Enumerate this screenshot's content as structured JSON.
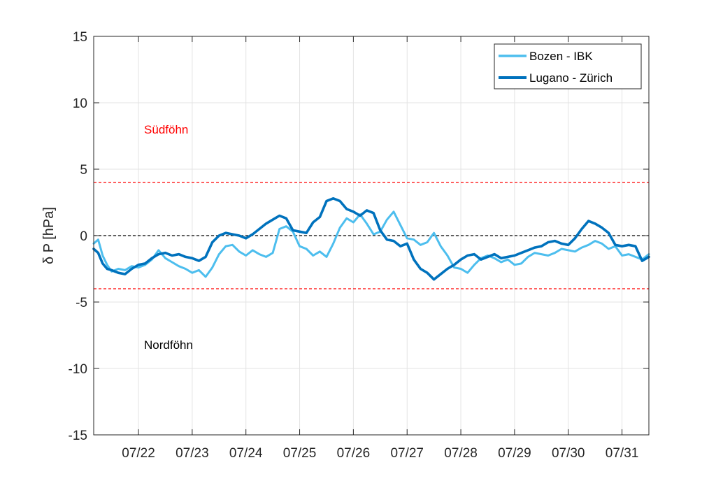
{
  "chart_data": {
    "type": "line",
    "title": "",
    "xlabel": "",
    "ylabel": "δ P [hPa]",
    "xlim": [
      "07/21 04:00",
      "07/31 12:00"
    ],
    "ylim": [
      -15,
      15
    ],
    "grid": true,
    "legend_position": "top-right",
    "x_ticks": [
      "07/22",
      "07/23",
      "07/24",
      "07/25",
      "07/26",
      "07/27",
      "07/28",
      "07/29",
      "07/30",
      "07/31"
    ],
    "y_ticks": [
      -15,
      -10,
      -5,
      0,
      5,
      10,
      15
    ],
    "y_tick_labels": [
      "-15",
      "-10",
      "-5",
      "0",
      "5",
      "10",
      "15"
    ],
    "reference_lines": [
      {
        "y": 4,
        "color": "#ff0000",
        "style": "dashed"
      },
      {
        "y": 0,
        "color": "#000000",
        "style": "dashed"
      },
      {
        "y": -4,
        "color": "#ff0000",
        "style": "dashed"
      }
    ],
    "annotations": [
      {
        "text": "Südföhn",
        "x": "07/22 00:00",
        "y": 8,
        "color": "#ff0000"
      },
      {
        "text": "Nordföhn",
        "x": "07/22 00:00",
        "y": -8.2,
        "color": "#000000"
      }
    ],
    "series": [
      {
        "name": "Bozen - IBK",
        "color": "#4dbeee",
        "line_width": "thin",
        "x": [
          "07/21 04:00",
          "07/21 06:00",
          "07/21 08:00",
          "07/21 10:00",
          "07/21 12:00",
          "07/21 15:00",
          "07/21 18:00",
          "07/21 21:00",
          "07/22 00:00",
          "07/22 03:00",
          "07/22 06:00",
          "07/22 09:00",
          "07/22 12:00",
          "07/22 15:00",
          "07/22 18:00",
          "07/22 21:00",
          "07/23 00:00",
          "07/23 03:00",
          "07/23 06:00",
          "07/23 09:00",
          "07/23 12:00",
          "07/23 15:00",
          "07/23 18:00",
          "07/23 21:00",
          "07/24 00:00",
          "07/24 03:00",
          "07/24 06:00",
          "07/24 09:00",
          "07/24 12:00",
          "07/24 15:00",
          "07/24 18:00",
          "07/24 21:00",
          "07/25 00:00",
          "07/25 03:00",
          "07/25 06:00",
          "07/25 09:00",
          "07/25 12:00",
          "07/25 15:00",
          "07/25 18:00",
          "07/25 21:00",
          "07/26 00:00",
          "07/26 03:00",
          "07/26 06:00",
          "07/26 09:00",
          "07/26 12:00",
          "07/26 15:00",
          "07/26 18:00",
          "07/26 21:00",
          "07/27 00:00",
          "07/27 03:00",
          "07/27 06:00",
          "07/27 09:00",
          "07/27 12:00",
          "07/27 15:00",
          "07/27 18:00",
          "07/27 21:00",
          "07/28 00:00",
          "07/28 03:00",
          "07/28 06:00",
          "07/28 09:00",
          "07/28 12:00",
          "07/28 15:00",
          "07/28 18:00",
          "07/28 21:00",
          "07/29 00:00",
          "07/29 03:00",
          "07/29 06:00",
          "07/29 09:00",
          "07/29 12:00",
          "07/29 15:00",
          "07/29 18:00",
          "07/29 21:00",
          "07/30 00:00",
          "07/30 03:00",
          "07/30 06:00",
          "07/30 09:00",
          "07/30 12:00",
          "07/30 15:00",
          "07/30 18:00",
          "07/30 21:00",
          "07/31 00:00",
          "07/31 03:00",
          "07/31 06:00",
          "07/31 09:00",
          "07/31 12:00"
        ],
        "y": [
          -0.6,
          -0.3,
          -1.5,
          -2.2,
          -2.7,
          -2.5,
          -2.6,
          -2.3,
          -2.4,
          -2.2,
          -1.8,
          -1.1,
          -1.7,
          -2.0,
          -2.3,
          -2.5,
          -2.8,
          -2.6,
          -3.1,
          -2.4,
          -1.4,
          -0.8,
          -0.7,
          -1.2,
          -1.5,
          -1.1,
          -1.4,
          -1.6,
          -1.3,
          0.5,
          0.7,
          0.3,
          -0.8,
          -1.0,
          -1.5,
          -1.2,
          -1.6,
          -0.6,
          0.6,
          1.3,
          1.0,
          1.6,
          0.9,
          0.1,
          0.3,
          1.2,
          1.8,
          0.8,
          -0.2,
          -0.3,
          -0.7,
          -0.5,
          0.2,
          -0.8,
          -1.5,
          -2.4,
          -2.5,
          -2.8,
          -2.2,
          -1.7,
          -1.5,
          -1.7,
          -2.0,
          -1.8,
          -2.2,
          -2.1,
          -1.6,
          -1.3,
          -1.4,
          -1.5,
          -1.3,
          -1.0,
          -1.1,
          -1.2,
          -0.9,
          -0.7,
          -0.4,
          -0.6,
          -1.0,
          -0.8,
          -1.5,
          -1.4,
          -1.6,
          -1.8,
          -1.4
        ]
      },
      {
        "name": "Lugano - Zürich",
        "color": "#0072bd",
        "line_width": "thick",
        "x": [
          "07/21 04:00",
          "07/21 06:00",
          "07/21 08:00",
          "07/21 10:00",
          "07/21 12:00",
          "07/21 15:00",
          "07/21 18:00",
          "07/21 21:00",
          "07/22 00:00",
          "07/22 03:00",
          "07/22 06:00",
          "07/22 09:00",
          "07/22 12:00",
          "07/22 15:00",
          "07/22 18:00",
          "07/22 21:00",
          "07/23 00:00",
          "07/23 03:00",
          "07/23 06:00",
          "07/23 09:00",
          "07/23 12:00",
          "07/23 15:00",
          "07/23 18:00",
          "07/23 21:00",
          "07/24 00:00",
          "07/24 03:00",
          "07/24 06:00",
          "07/24 09:00",
          "07/24 12:00",
          "07/24 15:00",
          "07/24 18:00",
          "07/24 21:00",
          "07/25 00:00",
          "07/25 03:00",
          "07/25 06:00",
          "07/25 09:00",
          "07/25 12:00",
          "07/25 15:00",
          "07/25 18:00",
          "07/25 21:00",
          "07/26 00:00",
          "07/26 03:00",
          "07/26 06:00",
          "07/26 09:00",
          "07/26 12:00",
          "07/26 15:00",
          "07/26 18:00",
          "07/26 21:00",
          "07/27 00:00",
          "07/27 03:00",
          "07/27 06:00",
          "07/27 09:00",
          "07/27 12:00",
          "07/27 15:00",
          "07/27 18:00",
          "07/27 21:00",
          "07/28 00:00",
          "07/28 03:00",
          "07/28 06:00",
          "07/28 09:00",
          "07/28 12:00",
          "07/28 15:00",
          "07/28 18:00",
          "07/28 21:00",
          "07/29 00:00",
          "07/29 03:00",
          "07/29 06:00",
          "07/29 09:00",
          "07/29 12:00",
          "07/29 15:00",
          "07/29 18:00",
          "07/29 21:00",
          "07/30 00:00",
          "07/30 03:00",
          "07/30 06:00",
          "07/30 09:00",
          "07/30 12:00",
          "07/30 15:00",
          "07/30 18:00",
          "07/30 21:00",
          "07/31 00:00",
          "07/31 03:00",
          "07/31 06:00",
          "07/31 09:00",
          "07/31 12:00"
        ],
        "y": [
          -1.0,
          -1.3,
          -2.1,
          -2.5,
          -2.6,
          -2.8,
          -2.9,
          -2.5,
          -2.2,
          -2.1,
          -1.7,
          -1.4,
          -1.3,
          -1.5,
          -1.4,
          -1.6,
          -1.7,
          -1.9,
          -1.6,
          -0.5,
          0.0,
          0.2,
          0.1,
          0.0,
          -0.2,
          0.1,
          0.5,
          0.9,
          1.2,
          1.5,
          1.3,
          0.4,
          0.3,
          0.2,
          1.0,
          1.4,
          2.6,
          2.8,
          2.6,
          2.0,
          1.8,
          1.5,
          1.9,
          1.7,
          0.4,
          -0.3,
          -0.4,
          -0.8,
          -0.6,
          -1.8,
          -2.5,
          -2.8,
          -3.3,
          -2.9,
          -2.5,
          -2.2,
          -1.8,
          -1.5,
          -1.4,
          -1.8,
          -1.6,
          -1.4,
          -1.7,
          -1.6,
          -1.5,
          -1.3,
          -1.1,
          -0.9,
          -0.8,
          -0.5,
          -0.4,
          -0.6,
          -0.7,
          -0.2,
          0.5,
          1.1,
          0.9,
          0.6,
          0.2,
          -0.7,
          -0.8,
          -0.7,
          -0.8,
          -1.9,
          -1.6
        ]
      }
    ]
  }
}
